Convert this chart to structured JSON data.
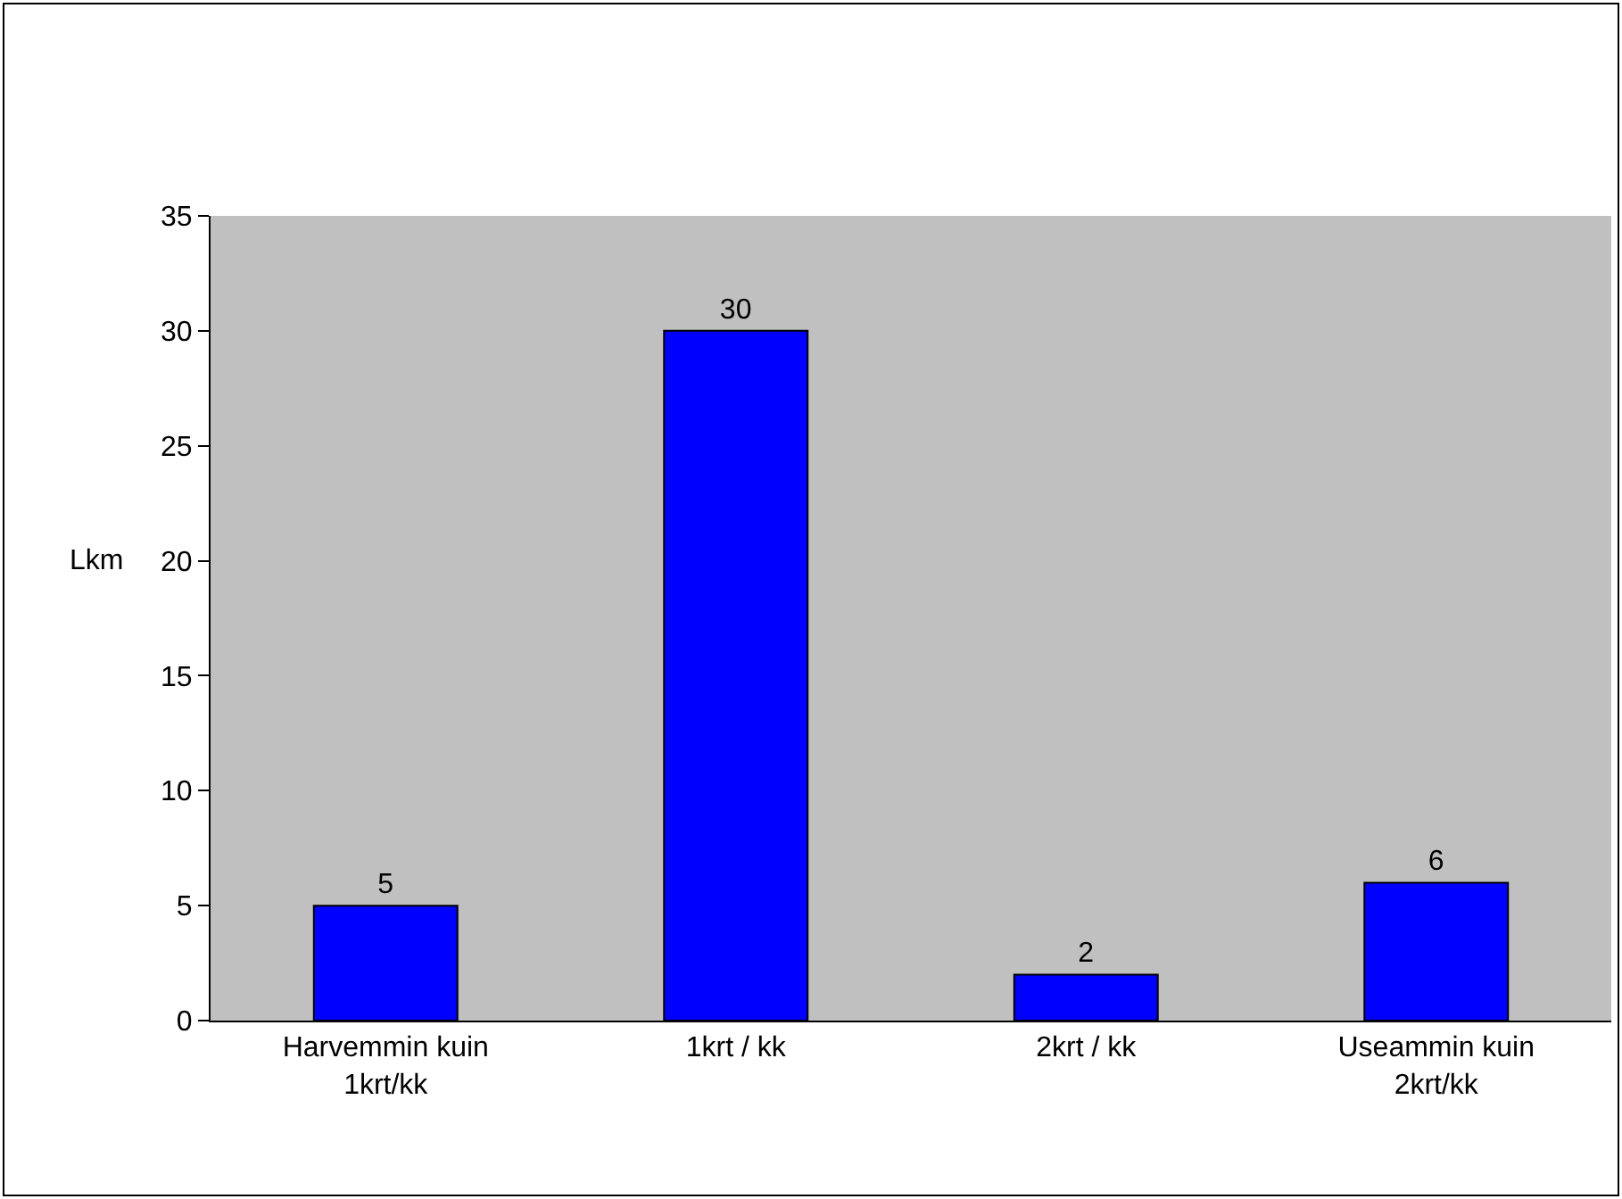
{
  "chart_data": {
    "type": "bar",
    "ylabel": "Lkm",
    "categories": [
      "Harvemmin kuin 1krt/kk",
      "1krt / kk",
      "2krt / kk",
      "Useammin kuin 2krt/kk"
    ],
    "values": [
      5,
      30,
      2,
      6
    ],
    "color": "#0000ff",
    "ylim": [
      0,
      35
    ],
    "yticks": [
      0,
      5,
      10,
      15,
      20,
      25,
      30,
      35
    ],
    "grid": false,
    "data_labels": true
  }
}
